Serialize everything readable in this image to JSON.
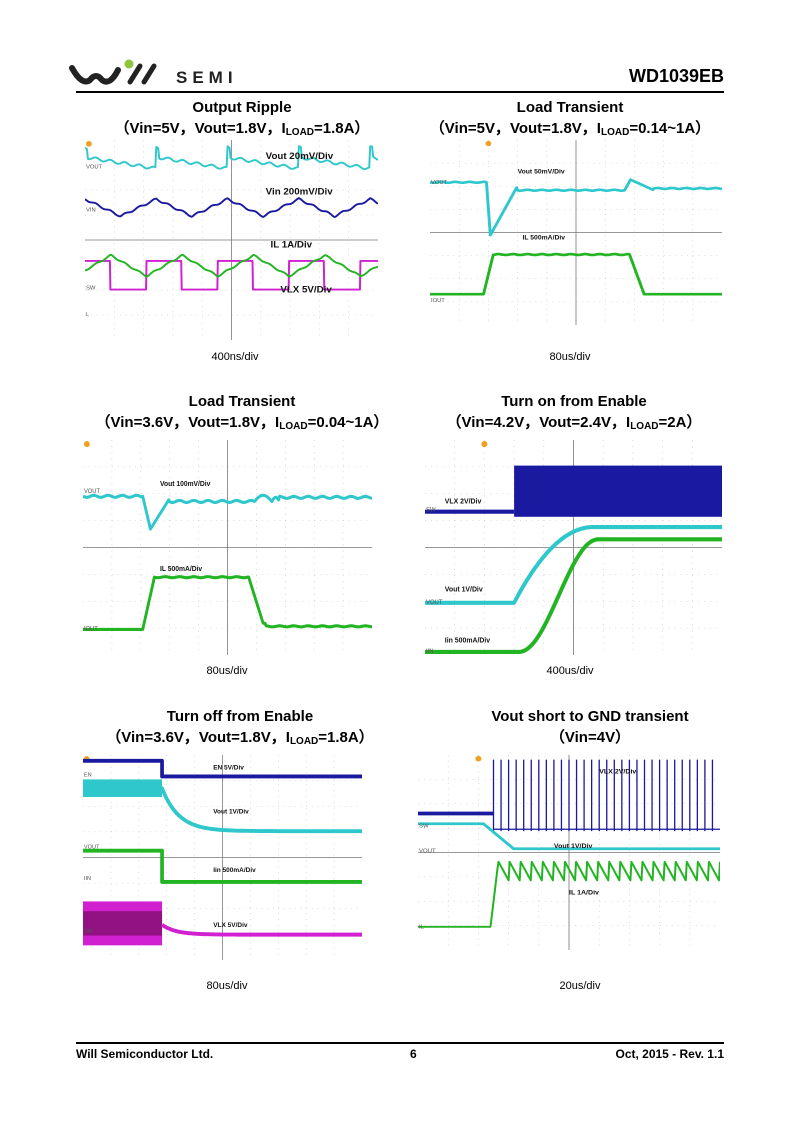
{
  "header": {
    "logo_text": "SEMI",
    "part_number": "WD1039EB"
  },
  "panels": [
    {
      "title": "Output Ripple",
      "cond_pre": "（Vin=5V，Vout=1.8V，I",
      "cond_sub": "LOAD",
      "cond_post": "=1.8A）",
      "labels": [
        "Vout 20mV/Div",
        "Vin 200mV/Div",
        "IL 1A/Div",
        "VLX 5V/Div"
      ],
      "timebase": "400ns/div"
    },
    {
      "title": "Load Transient",
      "cond_pre": "（Vin=5V，Vout=1.8V，I",
      "cond_sub": "LOAD",
      "cond_post": "=0.14~1A）",
      "labels": [
        "Vout 50mV/Div",
        "IL 500mA/Div"
      ],
      "timebase": "80us/div"
    },
    {
      "title": "Load Transient",
      "cond_pre": "（Vin=3.6V，Vout=1.8V，I",
      "cond_sub": "LOAD",
      "cond_post": "=0.04~1A）",
      "labels": [
        "Vout 100mV/Div",
        "IL 500mA/Div"
      ],
      "timebase": "80us/div"
    },
    {
      "title": "Turn on from Enable",
      "cond_pre": "（Vin=4.2V，Vout=2.4V，I",
      "cond_sub": "LOAD",
      "cond_post": "=2A）",
      "labels": [
        "VLX 2V/Div",
        "Vout 1V/Div",
        "Iin 500mA/Div"
      ],
      "timebase": "400us/div"
    },
    {
      "title": "Turn off from Enable",
      "cond_pre": "（Vin=3.6V，Vout=1.8V，I",
      "cond_sub": "LOAD",
      "cond_post": "=1.8A）",
      "labels": [
        "EN 5V/Div",
        "Vout 1V/Div",
        "Iin 500mA/Div",
        "VLX 5V/Div"
      ],
      "timebase": "80us/div"
    },
    {
      "title": "Vout short to GND transient",
      "cond_pre": "（Vin=4V）",
      "cond_sub": "",
      "cond_post": "",
      "labels": [
        "VLX 2V/Div",
        "Vout 1V/Div",
        "IL 1A/Div"
      ],
      "timebase": "20us/div"
    }
  ],
  "colors": {
    "cyan": "#2ec8cc",
    "blue": "#1a1aa0",
    "green": "#22b422",
    "magenta": "#d020d0"
  },
  "footer": {
    "company": "Will Semiconductor Ltd.",
    "page": "6",
    "date_rev": "Oct, 2015 - Rev. 1.1"
  }
}
